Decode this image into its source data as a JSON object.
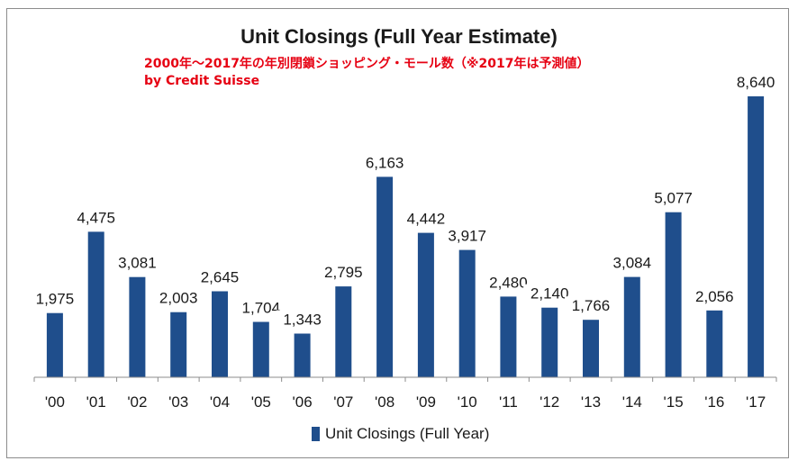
{
  "chart_data": {
    "type": "bar",
    "title": "Unit Closings (Full Year Estimate)",
    "annotation_lines": [
      "2000年〜2017年の年別閉鎖ショッピング・モール数（※2017年は予測値）",
      "by Credit Suisse"
    ],
    "categories": [
      "'00",
      "'01",
      "'02",
      "'03",
      "'04",
      "'05",
      "'06",
      "'07",
      "'08",
      "'09",
      "'10",
      "'11",
      "'12",
      "'13",
      "'14",
      "'15",
      "'16",
      "'17"
    ],
    "series": [
      {
        "name": "Unit Closings (Full Year)",
        "values": [
          1975,
          4475,
          3081,
          2003,
          2645,
          1704,
          1343,
          2795,
          6163,
          4442,
          3917,
          2480,
          2140,
          1766,
          3084,
          5077,
          2056,
          8640
        ],
        "value_labels": [
          "1,975",
          "4,475",
          "3,081",
          "2,003",
          "2,645",
          "1,704",
          "1,343",
          "2,795",
          "6,163",
          "4,442",
          "3,917",
          "2,480",
          "2,140",
          "1,766",
          "3,084",
          "5,077",
          "2,056",
          "8,640"
        ]
      }
    ],
    "ylim": [
      0,
      8640
    ],
    "grid": false,
    "legend_position": "bottom",
    "bar_color": "#1f4e8c",
    "annotation_color": "#e60012"
  }
}
